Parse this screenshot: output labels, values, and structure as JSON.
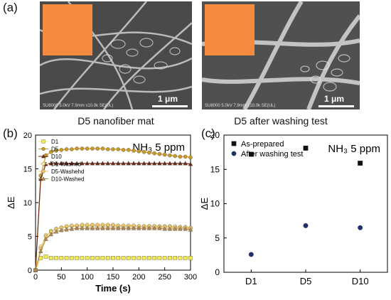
{
  "panel_a": {
    "label": "(a)",
    "images": [
      {
        "caption": "D5 nanofiber mat",
        "scale": "1 μm",
        "swatch_color": "#f48b3e",
        "sem_footer": "SU8000 5.0kV 7.9mm x10.0k SE(UL)"
      },
      {
        "caption": "D5 after washing test",
        "scale": "1 μm",
        "swatch_color": "#f48b3e",
        "sem_footer": "SU8000 5.0kV 7.9mm x10.0k SE(UL)"
      }
    ]
  },
  "colors": {
    "D1": "#f2ea55",
    "D5": "#c99a28",
    "D10": "#6e2a16",
    "D1W": "#f7f0a8",
    "D5W": "#efc76b",
    "D10W": "#b48a4e",
    "asprep": "#111111",
    "washed": "#1f2f6b"
  },
  "chart_data": [
    {
      "type": "line",
      "panel_label": "(b)",
      "annotation": "NH₃ 5 ppm",
      "xlabel": "Time (s)",
      "ylabel": "ΔE",
      "xlim": [
        0,
        300
      ],
      "ylim": [
        0,
        20
      ],
      "xticks": [
        0,
        50,
        100,
        150,
        200,
        250,
        300
      ],
      "yticks": [
        0,
        5,
        10,
        15,
        20
      ],
      "legend_position": "top-left",
      "x": [
        0,
        10,
        20,
        30,
        40,
        50,
        60,
        70,
        80,
        90,
        100,
        110,
        120,
        130,
        140,
        150,
        160,
        170,
        180,
        190,
        200,
        210,
        220,
        230,
        240,
        250,
        260,
        270,
        280,
        290,
        300
      ],
      "series": [
        {
          "name": "D1",
          "marker": "square",
          "color_key": "D1",
          "values": [
            0,
            1.8,
            2.0,
            1.8,
            1.8,
            1.8,
            1.8,
            1.8,
            1.8,
            1.8,
            1.8,
            1.8,
            1.8,
            1.8,
            1.8,
            1.8,
            1.8,
            1.8,
            1.8,
            1.8,
            1.8,
            1.8,
            1.8,
            1.8,
            1.8,
            1.8,
            1.8,
            1.8,
            1.8,
            1.8,
            1.8
          ]
        },
        {
          "name": "D5",
          "marker": "circle",
          "color_key": "D5",
          "values": [
            0,
            14.0,
            17.0,
            17.5,
            17.7,
            17.8,
            17.9,
            17.9,
            18.0,
            18.0,
            18.0,
            18.0,
            18.0,
            18.0,
            17.9,
            17.9,
            17.9,
            17.8,
            17.8,
            17.7,
            17.6,
            17.5,
            17.4,
            17.3,
            17.2,
            17.1,
            17.0,
            16.9,
            16.8,
            16.8,
            16.7
          ]
        },
        {
          "name": "D10",
          "marker": "triangle",
          "color_key": "D10",
          "values": [
            0,
            13.5,
            15.7,
            15.8,
            15.8,
            15.8,
            15.8,
            15.8,
            15.8,
            15.8,
            15.8,
            15.8,
            15.8,
            15.8,
            15.8,
            15.8,
            15.8,
            15.8,
            15.8,
            15.8,
            15.8,
            15.8,
            15.8,
            15.8,
            15.8,
            15.8,
            15.8,
            15.8,
            15.8,
            15.8,
            15.7
          ]
        },
        {
          "name": "D1-Washed",
          "marker": "circle",
          "color_key": "D1W",
          "values": [
            0,
            3.5,
            5.2,
            5.8,
            6.1,
            6.3,
            6.4,
            6.5,
            6.5,
            6.5,
            6.5,
            6.5,
            6.5,
            6.5,
            6.5,
            6.5,
            6.5,
            6.5,
            6.5,
            6.5,
            6.5,
            6.5,
            6.5,
            6.5,
            6.5,
            6.5,
            6.5,
            6.5,
            6.4,
            6.4,
            6.3
          ]
        },
        {
          "name": "D5-Washehd",
          "marker": "circle",
          "color_key": "D5W",
          "values": [
            0,
            3.2,
            5.0,
            5.7,
            6.1,
            6.3,
            6.5,
            6.6,
            6.6,
            6.7,
            6.7,
            6.7,
            6.7,
            6.7,
            6.7,
            6.7,
            6.6,
            6.6,
            6.6,
            6.6,
            6.5,
            6.5,
            6.5,
            6.5,
            6.4,
            6.4,
            6.4,
            6.3,
            6.3,
            6.3,
            6.2
          ]
        },
        {
          "name": "D10-Washed",
          "marker": "triangle",
          "color_key": "D10W",
          "values": [
            0,
            2.8,
            4.6,
            5.3,
            5.7,
            5.9,
            6.0,
            6.1,
            6.2,
            6.2,
            6.2,
            6.2,
            6.2,
            6.2,
            6.2,
            6.2,
            6.2,
            6.2,
            6.2,
            6.2,
            6.2,
            6.2,
            6.2,
            6.2,
            6.2,
            6.1,
            6.1,
            6.1,
            6.1,
            6.1,
            6.0
          ]
        }
      ]
    },
    {
      "type": "scatter",
      "panel_label": "(c)",
      "annotation": "NH₃ 5 ppm",
      "ylabel": "ΔE",
      "ylim": [
        0,
        20
      ],
      "yticks": [
        0,
        5,
        10,
        15,
        20
      ],
      "categories": [
        "D1",
        "D5",
        "D10"
      ],
      "legend_position": "top-left",
      "series": [
        {
          "name": "As-prepared",
          "marker": "square",
          "color_key": "asprep",
          "values": [
            17.2,
            18.1,
            15.9
          ]
        },
        {
          "name": "After washing test",
          "marker": "circle",
          "color_key": "washed",
          "values": [
            2.6,
            6.8,
            6.5
          ]
        }
      ]
    }
  ]
}
